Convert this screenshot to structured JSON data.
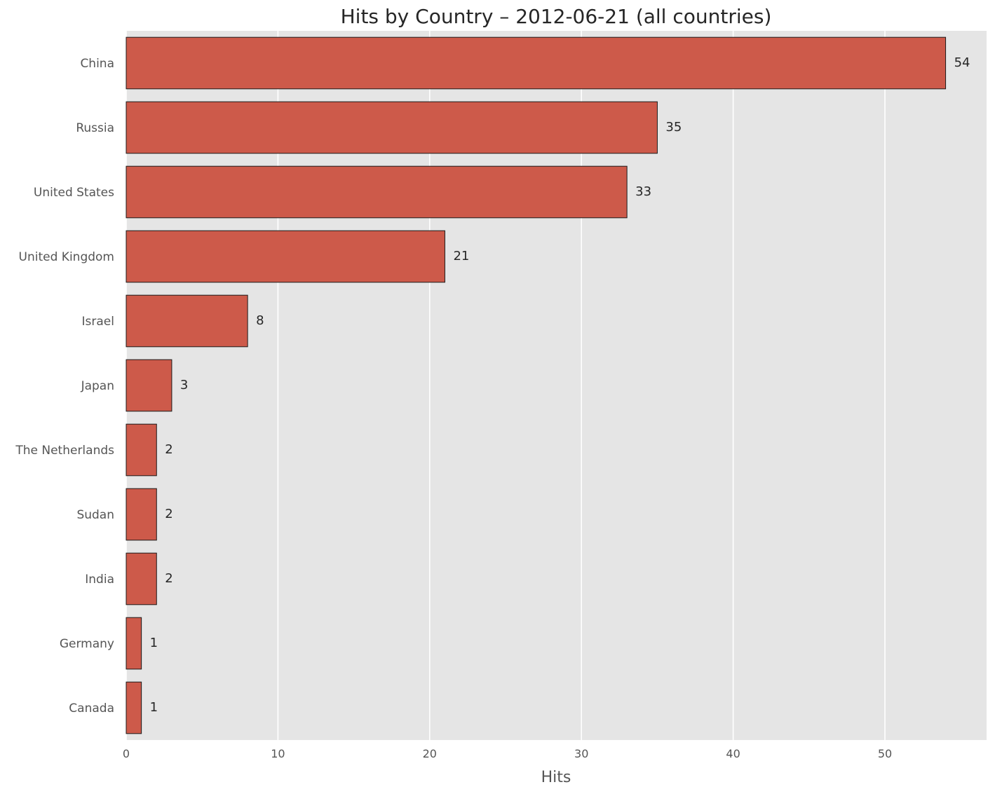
{
  "chart_data": {
    "type": "bar",
    "orientation": "horizontal",
    "title": "Hits by Country – 2012-06-21 (all countries)",
    "xlabel": "Hits",
    "ylabel": "",
    "categories": [
      "China",
      "Russia",
      "United States",
      "United Kingdom",
      "Israel",
      "Japan",
      "The Netherlands",
      "Sudan",
      "India",
      "Germany",
      "Canada"
    ],
    "values": [
      54,
      35,
      33,
      21,
      8,
      3,
      2,
      2,
      2,
      1,
      1
    ],
    "xlim": [
      0,
      56.7
    ],
    "xticks": [
      0,
      10,
      20,
      30,
      40,
      50
    ],
    "grid": true,
    "data_labels": true,
    "colors": {
      "bar": "#cd5a4a",
      "bar_edge": "#1a1a1a",
      "plot_background": "#e5e5e5",
      "grid": "#ffffff"
    }
  }
}
